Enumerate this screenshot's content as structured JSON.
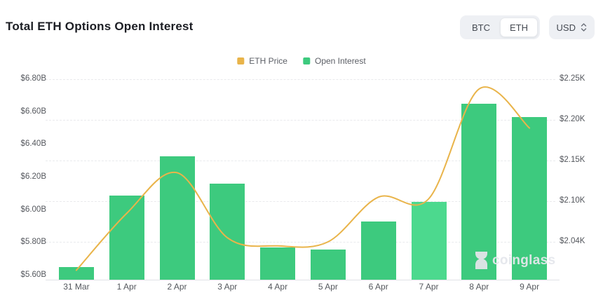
{
  "header": {
    "title": "Total ETH Options Open Interest"
  },
  "controls": {
    "coin_toggle": {
      "options": [
        "BTC",
        "ETH"
      ],
      "selected": "ETH"
    },
    "currency": {
      "label": "USD"
    }
  },
  "legend": [
    {
      "label": "ETH Price",
      "color": "#e9b44a"
    },
    {
      "label": "Open Interest",
      "color": "#3dca7e"
    }
  ],
  "watermark": {
    "text": "coinglass"
  },
  "chart_data": {
    "type": "bar+line combo",
    "title": "Total ETH Options Open Interest",
    "categories": [
      "31 Mar",
      "1 Apr",
      "2 Apr",
      "3 Apr",
      "4 Apr",
      "5 Apr",
      "6 Apr",
      "7 Apr",
      "8 Apr",
      "9 Apr"
    ],
    "series": [
      {
        "name": "Open Interest",
        "type": "bar",
        "axis": "left",
        "unit": "USD billions",
        "values": [
          5.65,
          6.09,
          6.33,
          6.16,
          5.77,
          5.76,
          5.93,
          6.05,
          6.65,
          6.57
        ],
        "color": "#3dca7e",
        "highlight_index": 7,
        "highlight_color": "#4cd98e"
      },
      {
        "name": "ETH Price",
        "type": "line",
        "axis": "right",
        "unit": "USD thousands",
        "values": [
          2.015,
          2.085,
          2.135,
          2.055,
          2.045,
          2.05,
          2.105,
          2.103,
          2.238,
          2.19
        ],
        "color": "#e9b44a",
        "smooth": true
      }
    ],
    "left_axis": {
      "ticks": [
        "$6.80B",
        "$6.60B",
        "$6.40B",
        "$6.20B",
        "$6.00B",
        "$5.80B",
        "$5.60B"
      ],
      "min": 5.6,
      "max": 6.8
    },
    "right_axis": {
      "ticks": [
        "$2.25K",
        "$2.20K",
        "$2.15K",
        "$2.10K",
        "$2.04K"
      ],
      "min": 2.04,
      "max": 2.25
    },
    "grid": "horizontal dashed, legend top-center"
  }
}
